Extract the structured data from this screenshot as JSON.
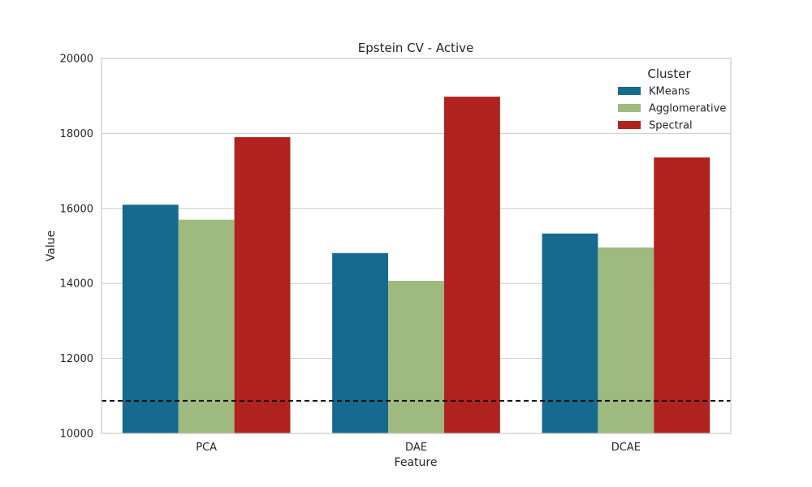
{
  "chart_data": {
    "type": "bar",
    "title": "Epstein CV - Active",
    "xlabel": "Feature",
    "ylabel": "Value",
    "categories": [
      "PCA",
      "DAE",
      "DCAE"
    ],
    "series": [
      {
        "name": "KMeans",
        "color": "#16698f",
        "values": [
          16100,
          14810,
          15330
        ]
      },
      {
        "name": "Agglomerative",
        "color": "#9fba7f",
        "values": [
          15700,
          14070,
          14960
        ]
      },
      {
        "name": "Spectral",
        "color": "#b0221e",
        "values": [
          17900,
          18980,
          17360
        ]
      }
    ],
    "ylim": [
      10000,
      20000
    ],
    "yticks": [
      10000,
      12000,
      14000,
      16000,
      18000,
      20000
    ],
    "ytick_labels": [
      "10000",
      "12000",
      "14000",
      "16000",
      "18000",
      "20000"
    ],
    "reference_line": {
      "value": 10870,
      "style": "dashed",
      "color": "#000000"
    },
    "legend": {
      "title": "Cluster",
      "placement": "top-right"
    },
    "grid": true
  }
}
